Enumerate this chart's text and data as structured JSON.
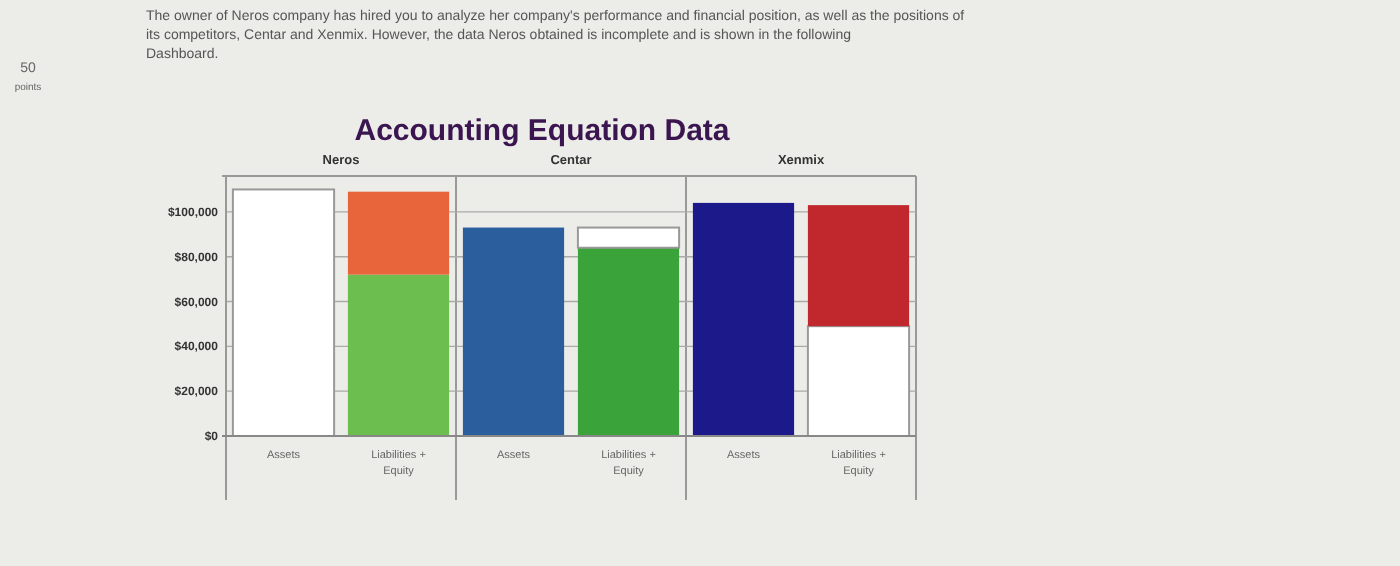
{
  "chart_data": {
    "type": "bar",
    "title": "Accounting Equation Data",
    "categories": [
      "Assets",
      "Liabilities + Equity",
      "Assets",
      "Liabilities + Equity",
      "Assets",
      "Liabilities + Equity"
    ],
    "stacked": true,
    "series": [
      {
        "colors": [
          "#ffffff",
          "#6cbf4e",
          "#2a5e9c",
          "#3aa33a",
          "#1c1a8a",
          "#ffffff"
        ],
        "values": [
          110000,
          72000,
          93000,
          84000,
          104000,
          49000
        ]
      },
      {
        "colors": [
          null,
          "#e8643a",
          null,
          "#ffffff",
          null,
          "#c0282d"
        ],
        "values": [
          null,
          37000,
          null,
          9000,
          null,
          54000
        ]
      }
    ],
    "ylim": [
      0,
      116000
    ],
    "yticks": [
      {
        "value": 0,
        "label": "$0"
      },
      {
        "value": 20000,
        "label": "$20,000"
      },
      {
        "value": 40000,
        "label": "$40,000"
      },
      {
        "value": 60000,
        "label": "$60,000"
      },
      {
        "value": 80000,
        "label": "$80,000"
      },
      {
        "value": 100000,
        "label": "$100,000"
      }
    ],
    "grid": "y",
    "annotations": [
      "The owner of Neros company has hired you to analyze her company's performance and financial position, as well as the positions of",
      "its competitors, Centar and Xenmix. However, the data Neros obtained is incomplete and is shown in the following",
      "Dashboard.",
      "50",
      "points",
      "Neros",
      "Centar",
      "Xenmix"
    ]
  }
}
